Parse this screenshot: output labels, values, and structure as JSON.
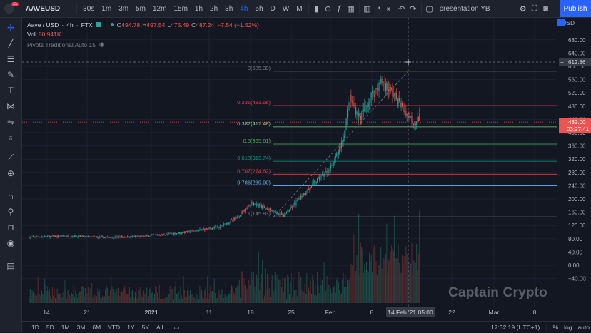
{
  "header": {
    "badge": "11",
    "symbol": "AAVEUSD",
    "intervals": [
      "30s",
      "1m",
      "3m",
      "5m",
      "12m",
      "15m",
      "1h",
      "2h",
      "3h",
      "4h",
      "5h",
      "D",
      "W",
      "M"
    ],
    "active_interval": "4h",
    "layout_name": "presentation YB",
    "publish_label": "Publish"
  },
  "legend": {
    "name": "Aave / USD",
    "interval": "4h",
    "exchange": "FTX",
    "o_label": "O",
    "o": "494.78",
    "h_label": "H",
    "h": "497.54",
    "l_label": "L",
    "l": "475.49",
    "c_label": "C",
    "c": "487.24",
    "change": "−7.54 (−1.52%)",
    "vol_label": "Vol",
    "vol": "80.941K",
    "pivots_label": "Pivots Traditional Auto 15"
  },
  "chart_data": {
    "type": "candlestick",
    "currency": "USD",
    "y_range": [
      -60,
      700
    ],
    "y_ticks": [
      680,
      640,
      600,
      560,
      520,
      480,
      440,
      400,
      360,
      320,
      280,
      240,
      200,
      160,
      120,
      80,
      40,
      0,
      -40
    ],
    "x_ticks": [
      "14",
      "21",
      "2021",
      "11",
      "18",
      "25",
      "Feb",
      "8",
      "14 Feb '21  05:00",
      "22",
      "Mar",
      "8"
    ],
    "fib_levels": [
      {
        "ratio": "0",
        "price": 585.39,
        "label": "0(585.39)",
        "color": "#787b86"
      },
      {
        "ratio": "0.236",
        "price": 481.66,
        "label": "0.236(481.66)",
        "color": "#f23645"
      },
      {
        "ratio": "0.382",
        "price": 417.48,
        "label": "0.382(417.48)",
        "color": "#81c784"
      },
      {
        "ratio": "0.5",
        "price": 365.61,
        "label": "0.5(365.61)",
        "color": "#4caf50"
      },
      {
        "ratio": "0.618",
        "price": 313.74,
        "label": "0.618(313.74)",
        "color": "#089981"
      },
      {
        "ratio": "0.707",
        "price": 274.62,
        "label": "0.707(274.62)",
        "color": "#f23645"
      },
      {
        "ratio": "0.786",
        "price": 239.9,
        "label": "0.786(239.90)",
        "color": "#64b5f6"
      },
      {
        "ratio": "1",
        "price": 145.83,
        "label": "1(145.83)",
        "color": "#787b86"
      }
    ],
    "price_path": [
      [
        "2020-12-07",
        85
      ],
      [
        "2020-12-14",
        88
      ],
      [
        "2020-12-21",
        84
      ],
      [
        "2020-12-28",
        87
      ],
      [
        "2021-01-04",
        98
      ],
      [
        "2021-01-11",
        115
      ],
      [
        "2021-01-14",
        140
      ],
      [
        "2021-01-17",
        190
      ],
      [
        "2021-01-20",
        168
      ],
      [
        "2021-01-23",
        150
      ],
      [
        "2021-01-26",
        205
      ],
      [
        "2021-01-29",
        255
      ],
      [
        "2021-02-01",
        300
      ],
      [
        "2021-02-03",
        390
      ],
      [
        "2021-02-04",
        505
      ],
      [
        "2021-02-06",
        445
      ],
      [
        "2021-02-08",
        510
      ],
      [
        "2021-02-10",
        555
      ],
      [
        "2021-02-12",
        520
      ],
      [
        "2021-02-14",
        470
      ],
      [
        "2021-02-16",
        430
      ],
      [
        "2021-02-17",
        445
      ]
    ],
    "last_price": "432.00",
    "countdown": "03:27:41",
    "crosshair_price": "612.86",
    "up_color": "#26a69a",
    "down_color": "#ef5350"
  },
  "bottom": {
    "ranges": [
      "1D",
      "5D",
      "1M",
      "3M",
      "6M",
      "YTD",
      "1Y",
      "5Y",
      "All"
    ],
    "clock": "17:32:19 (UTC+1)",
    "pct": "%",
    "log": "log",
    "auto": "auto"
  },
  "watermark": "Captain Crypto"
}
